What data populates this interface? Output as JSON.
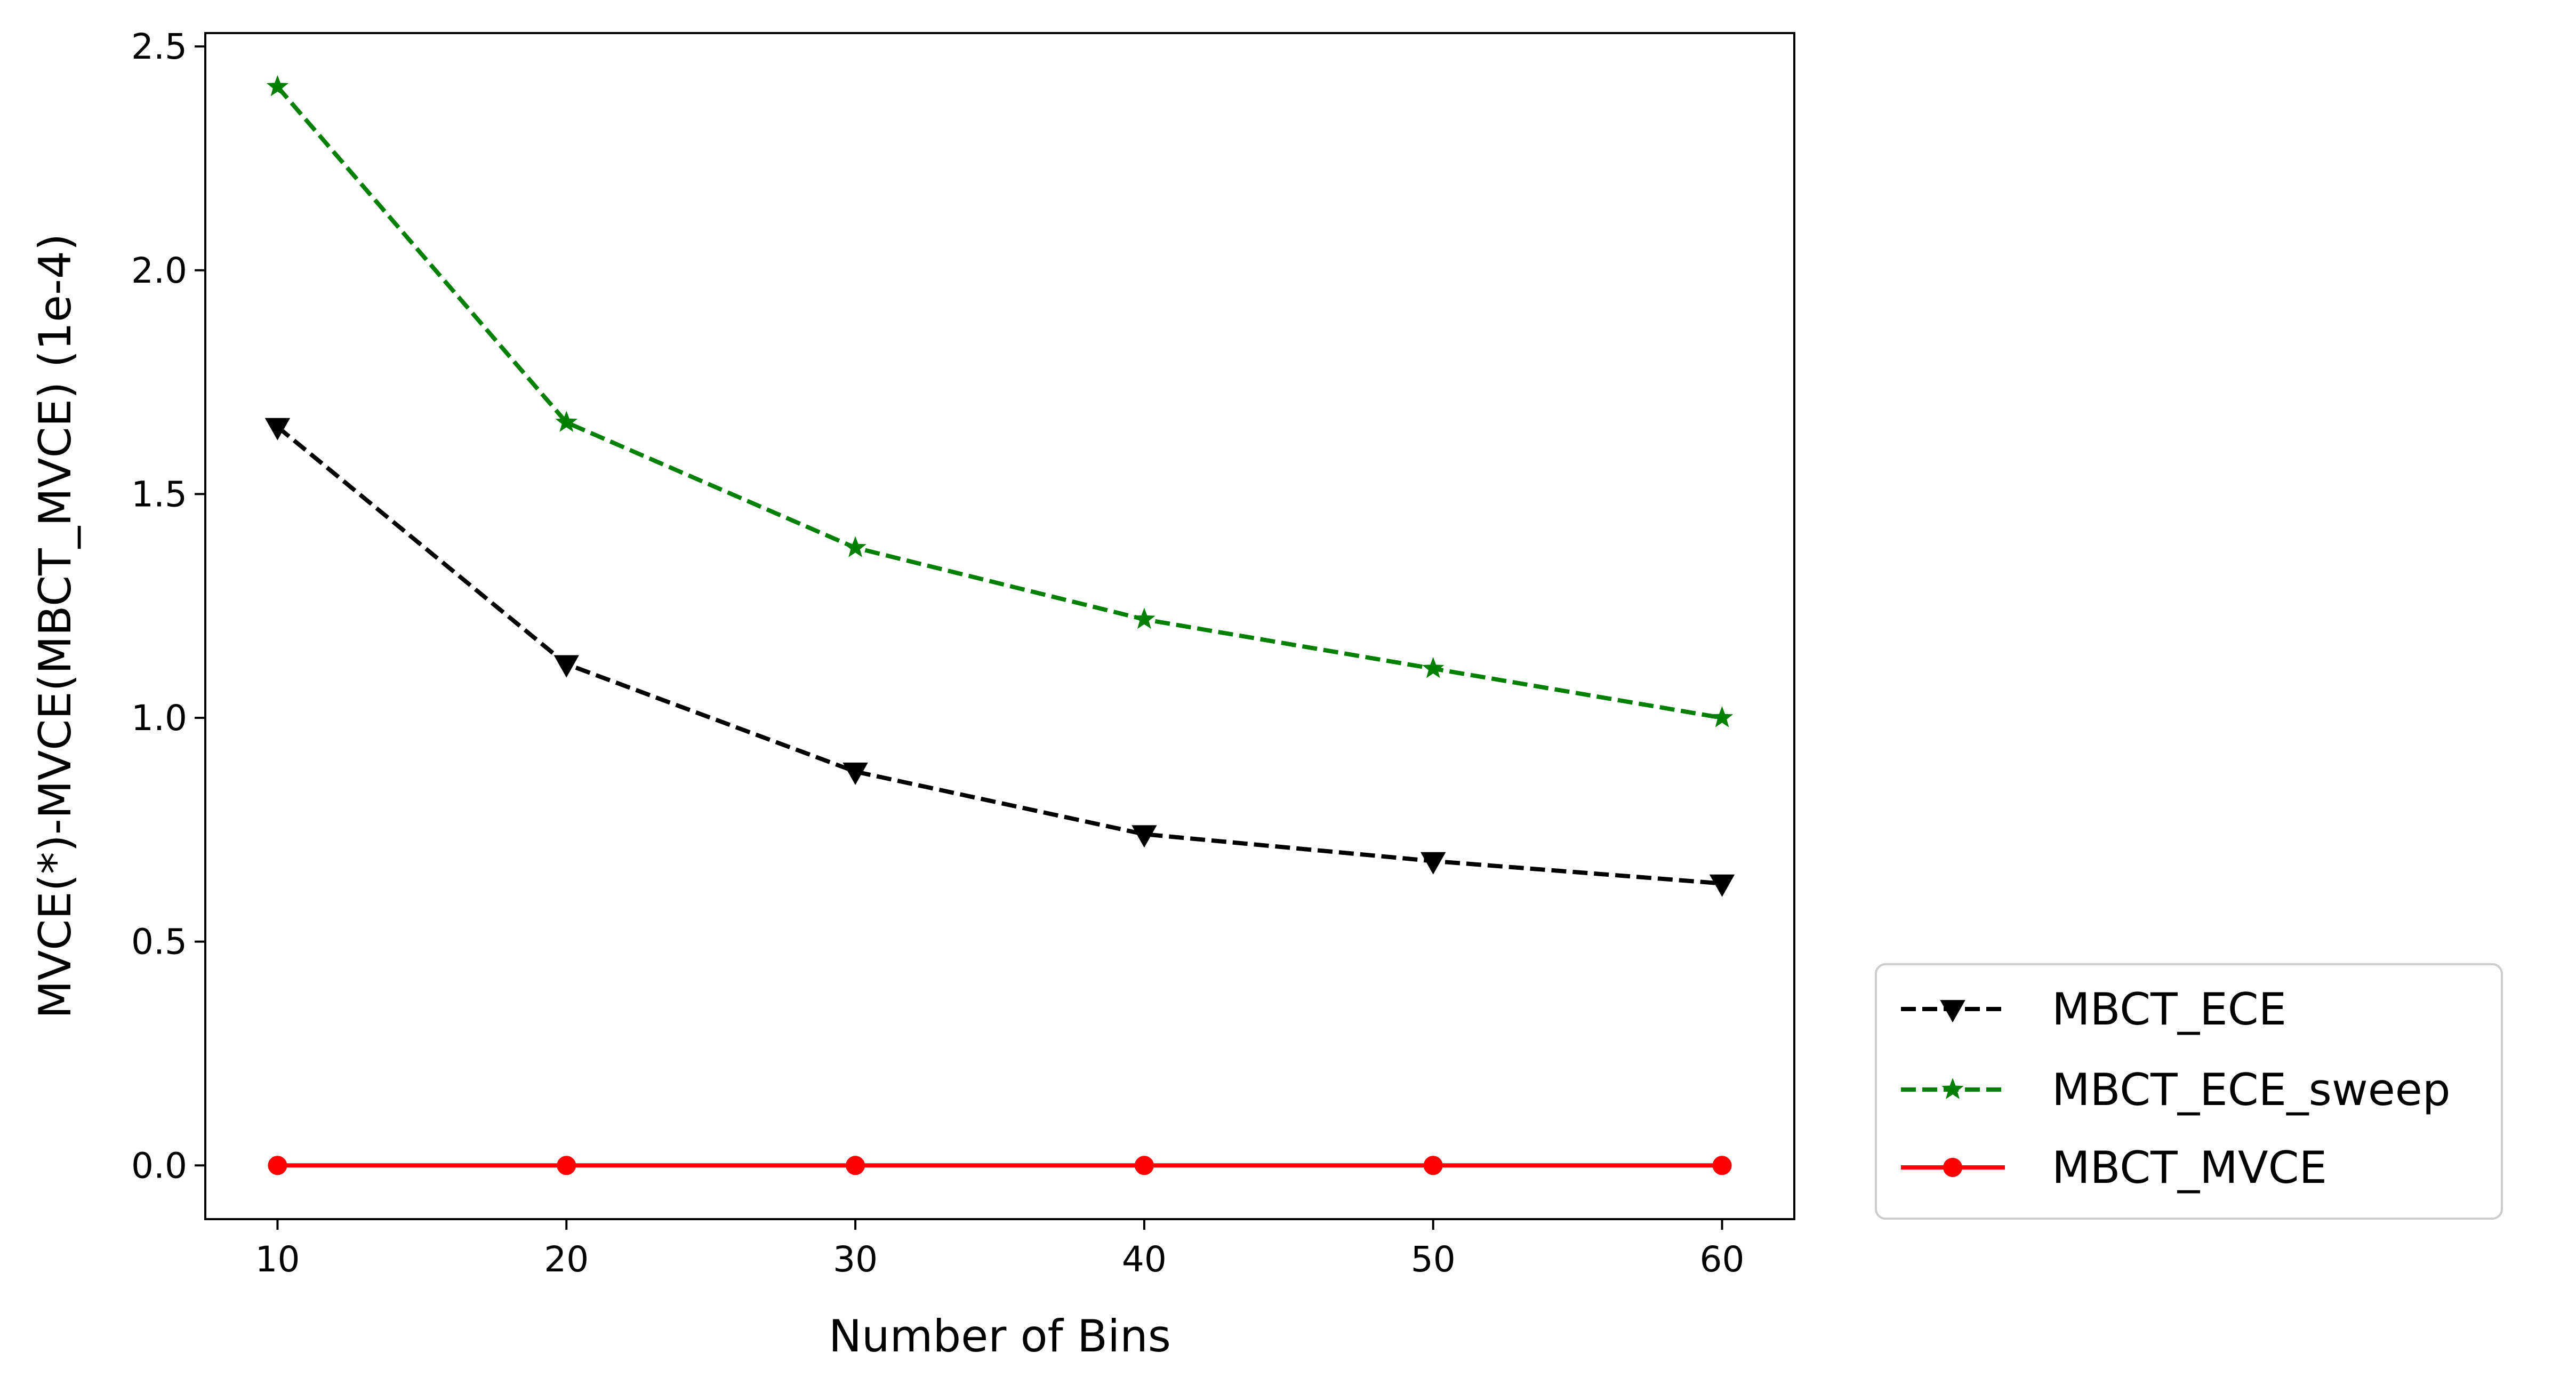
{
  "chart_data": {
    "type": "line",
    "title": "",
    "xlabel": "Number of Bins",
    "ylabel": "MVCE(*)-MVCE(MBCT_MVCE) (1e-4)",
    "x": [
      10,
      20,
      30,
      40,
      50,
      60
    ],
    "xlim": [
      7.5,
      62.5
    ],
    "ylim": [
      -0.12,
      2.53
    ],
    "xticks": [
      "10",
      "20",
      "30",
      "40",
      "50",
      "60"
    ],
    "yticks": [
      "0.0",
      "0.5",
      "1.0",
      "1.5",
      "2.0",
      "2.5"
    ],
    "grid": false,
    "legend_position": "outside-bottom-right",
    "series": [
      {
        "name": "MBCT_ECE",
        "values": [
          1.65,
          1.12,
          0.88,
          0.74,
          0.68,
          0.63
        ],
        "color": "#000000",
        "line_style": "dashed",
        "marker": "triangle-down"
      },
      {
        "name": "MBCT_ECE_sweep",
        "values": [
          2.41,
          1.66,
          1.38,
          1.22,
          1.11,
          1.0
        ],
        "color": "#008000",
        "line_style": "dashed",
        "marker": "star"
      },
      {
        "name": "MBCT_MVCE",
        "values": [
          0.0,
          0.0,
          0.0,
          0.0,
          0.0,
          0.0
        ],
        "color": "#ff0000",
        "line_style": "solid",
        "marker": "circle"
      }
    ]
  }
}
